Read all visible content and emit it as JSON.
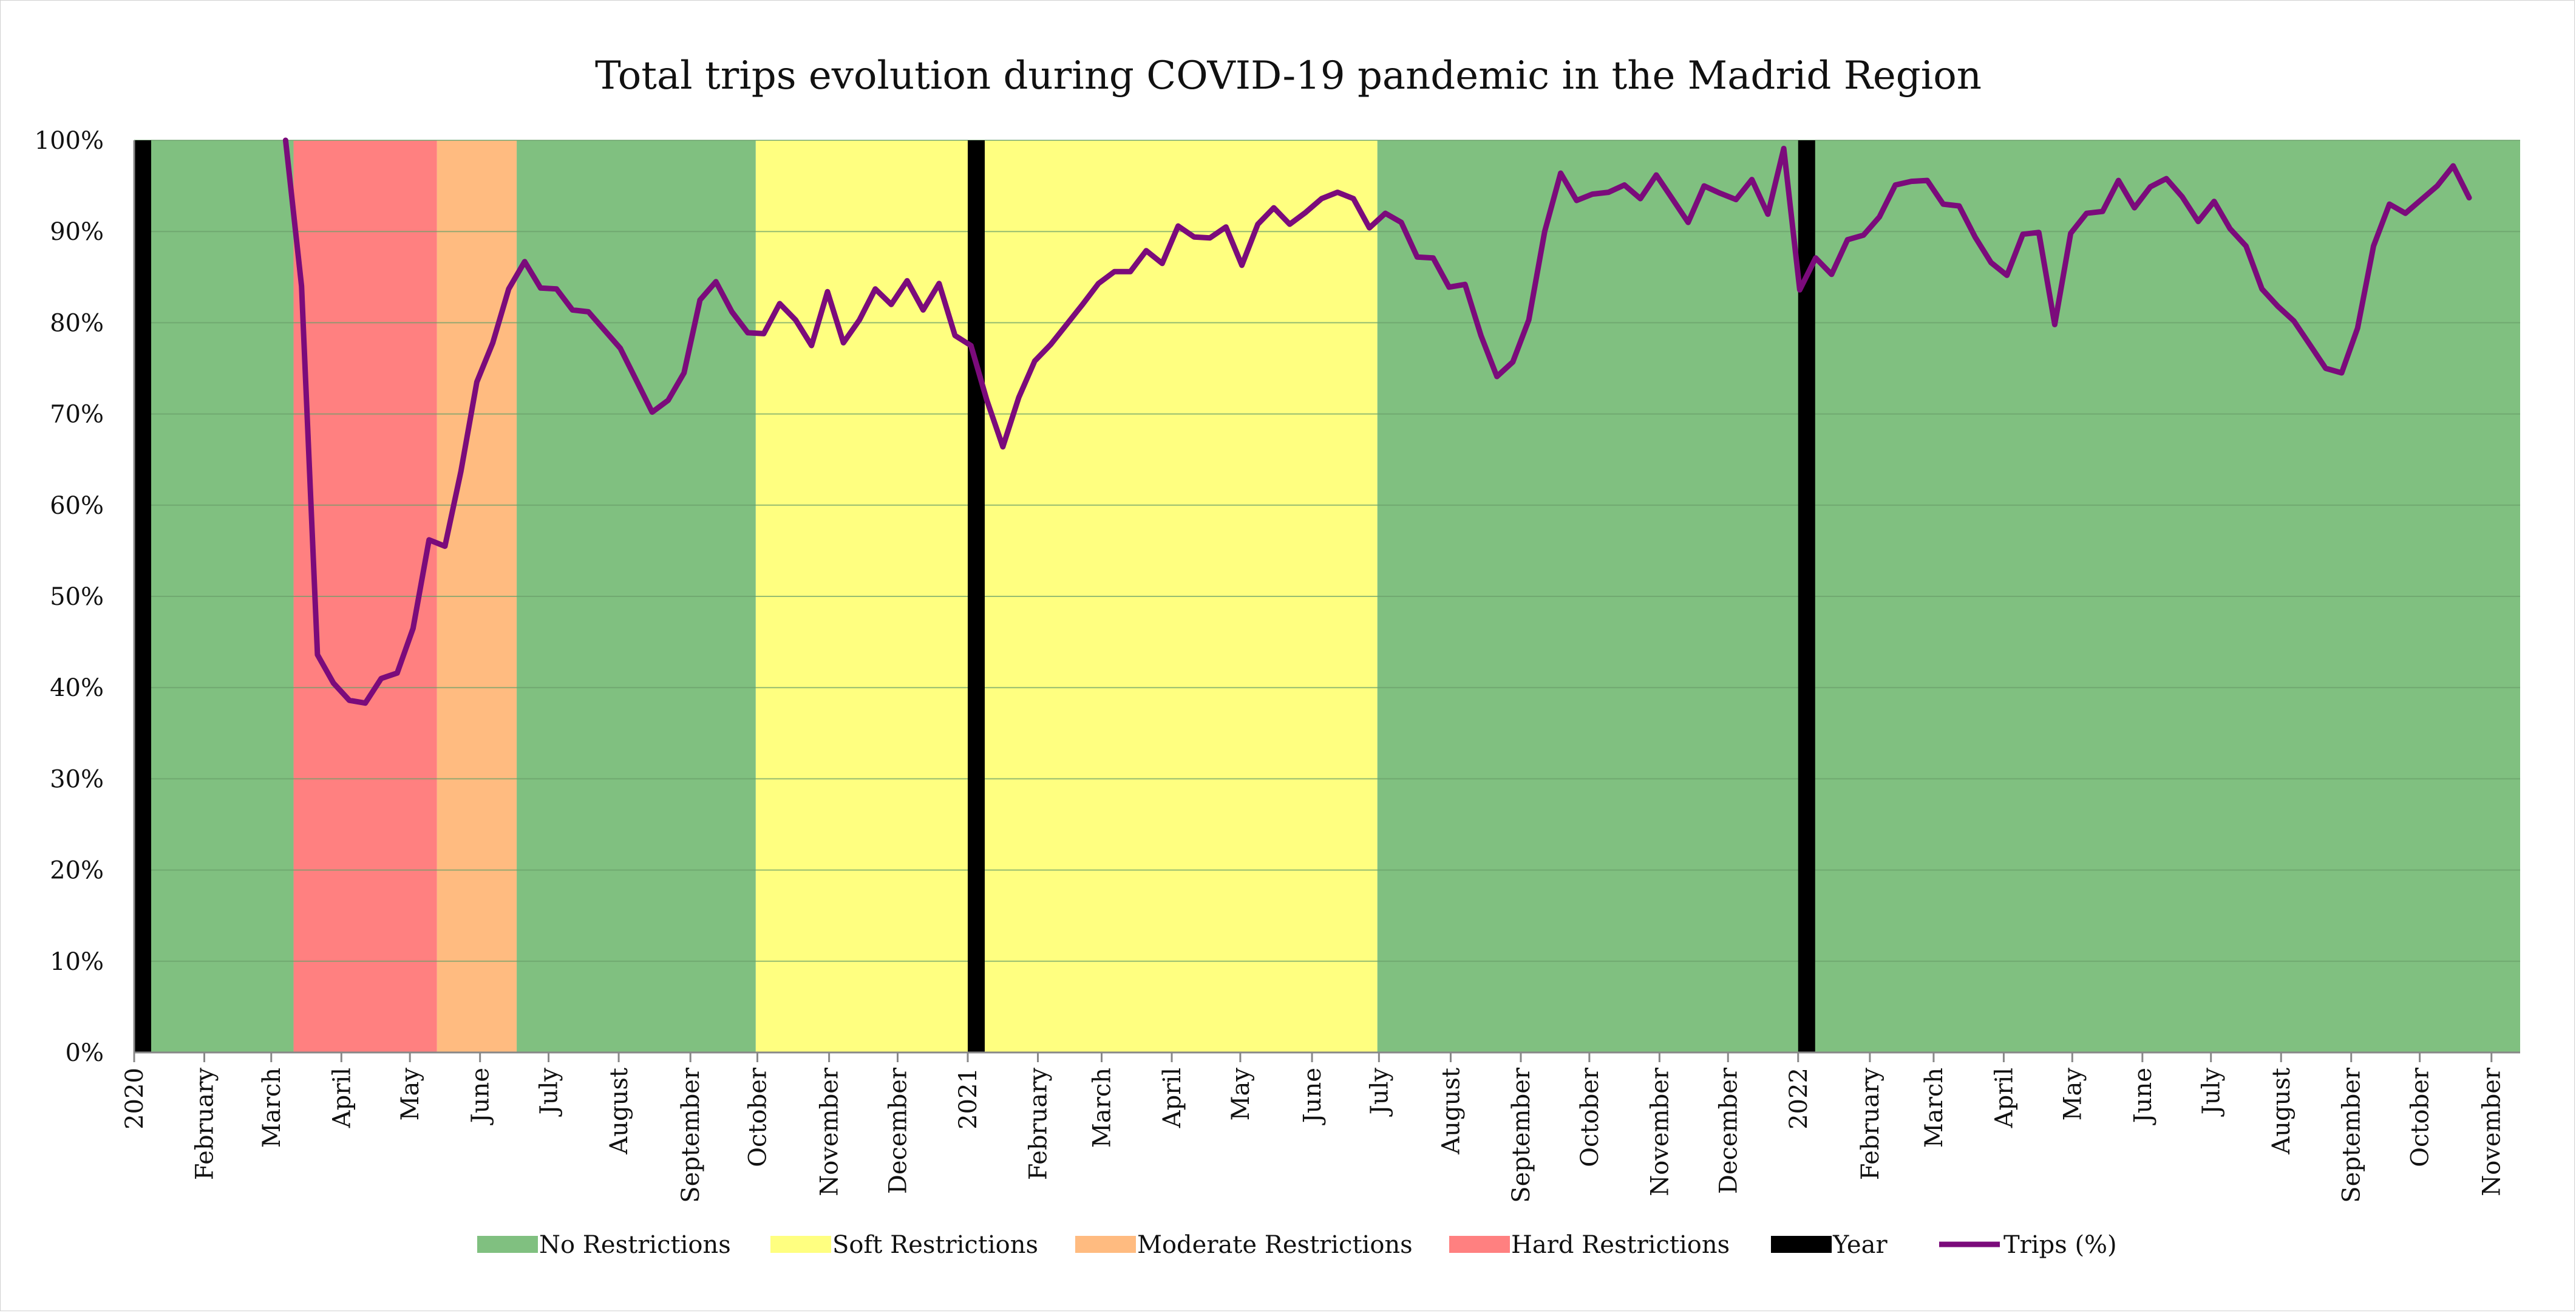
{
  "chart_data": {
    "type": "line",
    "title": "Total trips evolution during COVID-19 pandemic in the Madrid Region",
    "xlabel": "",
    "ylabel": "",
    "ylim": [
      0,
      100
    ],
    "y_ticks": [
      "0%",
      "10%",
      "20%",
      "30%",
      "40%",
      "50%",
      "60%",
      "70%",
      "80%",
      "90%",
      "100%"
    ],
    "y_tick_values": [
      0,
      10,
      20,
      30,
      40,
      50,
      60,
      70,
      80,
      90,
      100
    ],
    "grid": true,
    "legend_position": "bottom",
    "x_ticks": [
      {
        "label": "2020",
        "week": 0
      },
      {
        "label": "February",
        "week": 4.4
      },
      {
        "label": "March",
        "week": 8.6
      },
      {
        "label": "April",
        "week": 13
      },
      {
        "label": "May",
        "week": 17.3
      },
      {
        "label": "June",
        "week": 21.7
      },
      {
        "label": "July",
        "week": 26
      },
      {
        "label": "August",
        "week": 30.4
      },
      {
        "label": "September",
        "week": 34.9
      },
      {
        "label": "October",
        "week": 39.1
      },
      {
        "label": "November",
        "week": 43.6
      },
      {
        "label": "December",
        "week": 47.9
      },
      {
        "label": "2021",
        "week": 52.3
      },
      {
        "label": "February",
        "week": 56.7
      },
      {
        "label": "March",
        "week": 60.7
      },
      {
        "label": "April",
        "week": 65.1
      },
      {
        "label": "May",
        "week": 69.4
      },
      {
        "label": "June",
        "week": 73.9
      },
      {
        "label": "July",
        "week": 78.1
      },
      {
        "label": "August",
        "week": 82.6
      },
      {
        "label": "September",
        "week": 87
      },
      {
        "label": "October",
        "week": 91.3
      },
      {
        "label": "November",
        "week": 95.7
      },
      {
        "label": "December",
        "week": 100
      },
      {
        "label": "2022",
        "week": 104.4
      },
      {
        "label": "February",
        "week": 108.9
      },
      {
        "label": "March",
        "week": 112.9
      },
      {
        "label": "April",
        "week": 117.3
      },
      {
        "label": "May",
        "week": 121.6
      },
      {
        "label": "June",
        "week": 126
      },
      {
        "label": "July",
        "week": 130.3
      },
      {
        "label": "August",
        "week": 134.7
      },
      {
        "label": "September",
        "week": 139.1
      },
      {
        "label": "October",
        "week": 143.4
      },
      {
        "label": "November",
        "week": 147.9
      }
    ],
    "x_range_weeks": [
      0,
      149.7
    ],
    "bands": [
      {
        "category": "No Restrictions",
        "start_week": 0,
        "end_week": 10
      },
      {
        "category": "Hard Restrictions",
        "start_week": 10,
        "end_week": 19
      },
      {
        "category": "Moderate Restrictions",
        "start_week": 19,
        "end_week": 24
      },
      {
        "category": "No Restrictions",
        "start_week": 24,
        "end_week": 39
      },
      {
        "category": "Soft Restrictions",
        "start_week": 39,
        "end_week": 78
      },
      {
        "category": "No Restrictions",
        "start_week": 78,
        "end_week": 149.7
      }
    ],
    "year_markers": [
      {
        "label": "2020",
        "week": 0
      },
      {
        "label": "2021",
        "week": 52.3
      },
      {
        "label": "2022",
        "week": 104.4
      }
    ],
    "series": [
      {
        "name": "Trips (%)",
        "color": "#7B0B7B",
        "start_week": 9.5,
        "values": [
          100,
          84,
          43.6,
          40.5,
          38.6,
          38.3,
          41,
          41.6,
          46.5,
          56.2,
          55.5,
          63.7,
          73.5,
          77.8,
          83.7,
          86.7,
          83.8,
          83.7,
          81.4,
          81.2,
          79.2,
          77.2,
          73.7,
          70.2,
          71.5,
          74.5,
          82.5,
          84.5,
          81.2,
          78.9,
          78.8,
          82.1,
          80.3,
          77.5,
          83.4,
          77.8,
          80.3,
          83.7,
          82.0,
          84.6,
          81.4,
          84.3,
          78.6,
          77.5,
          71.5,
          66.4,
          71.8,
          75.8,
          77.6,
          79.8,
          82.0,
          84.3,
          85.6,
          85.6,
          87.9,
          86.5,
          90.6,
          89.4,
          89.3,
          90.5,
          86.3,
          90.8,
          92.6,
          90.8,
          92.1,
          93.6,
          94.3,
          93.6,
          90.4,
          92.0,
          91.0,
          87.2,
          87.1,
          83.9,
          84.2,
          78.6,
          74.1,
          75.7,
          80.3,
          90.0,
          96.4,
          93.4,
          94.1,
          94.3,
          95.1,
          93.6,
          96.2,
          93.6,
          91.0,
          95.0,
          94.2,
          93.5,
          95.7,
          91.9,
          99.1,
          83.6,
          87.1,
          85.3,
          89.1,
          89.6,
          91.6,
          95.1,
          95.5,
          95.6,
          93.0,
          92.8,
          89.4,
          86.6,
          85.2,
          89.7,
          89.9,
          79.8,
          89.8,
          92.0,
          92.2,
          95.6,
          92.6,
          94.9,
          95.8,
          93.8,
          91.1,
          93.3,
          90.3,
          88.4,
          83.7,
          81.8,
          80.2,
          77.6,
          75.0,
          74.5,
          79.4,
          88.4,
          93.0,
          92.0,
          93.5,
          95.0,
          97.2,
          93.7
        ]
      }
    ],
    "legend": [
      {
        "label": "No Restrictions",
        "type": "fill",
        "color": "#80C080"
      },
      {
        "label": "Soft Restrictions",
        "type": "fill",
        "color": "#FFFF80"
      },
      {
        "label": "Moderate Restrictions",
        "type": "fill",
        "color": "#FFBB80"
      },
      {
        "label": "Hard Restrictions",
        "type": "fill",
        "color": "#FF8080"
      },
      {
        "label": "Year",
        "type": "fill",
        "color": "#000000"
      },
      {
        "label": "Trips (%)",
        "type": "line",
        "color": "#7B0B7B"
      }
    ],
    "colors": {
      "No Restrictions": "#80C080",
      "Soft Restrictions": "#FFFF80",
      "Moderate Restrictions": "#FFBB80",
      "Hard Restrictions": "#FF8080",
      "Year": "#000000",
      "gridline": "#6AA06A",
      "axis": "#888888"
    }
  }
}
